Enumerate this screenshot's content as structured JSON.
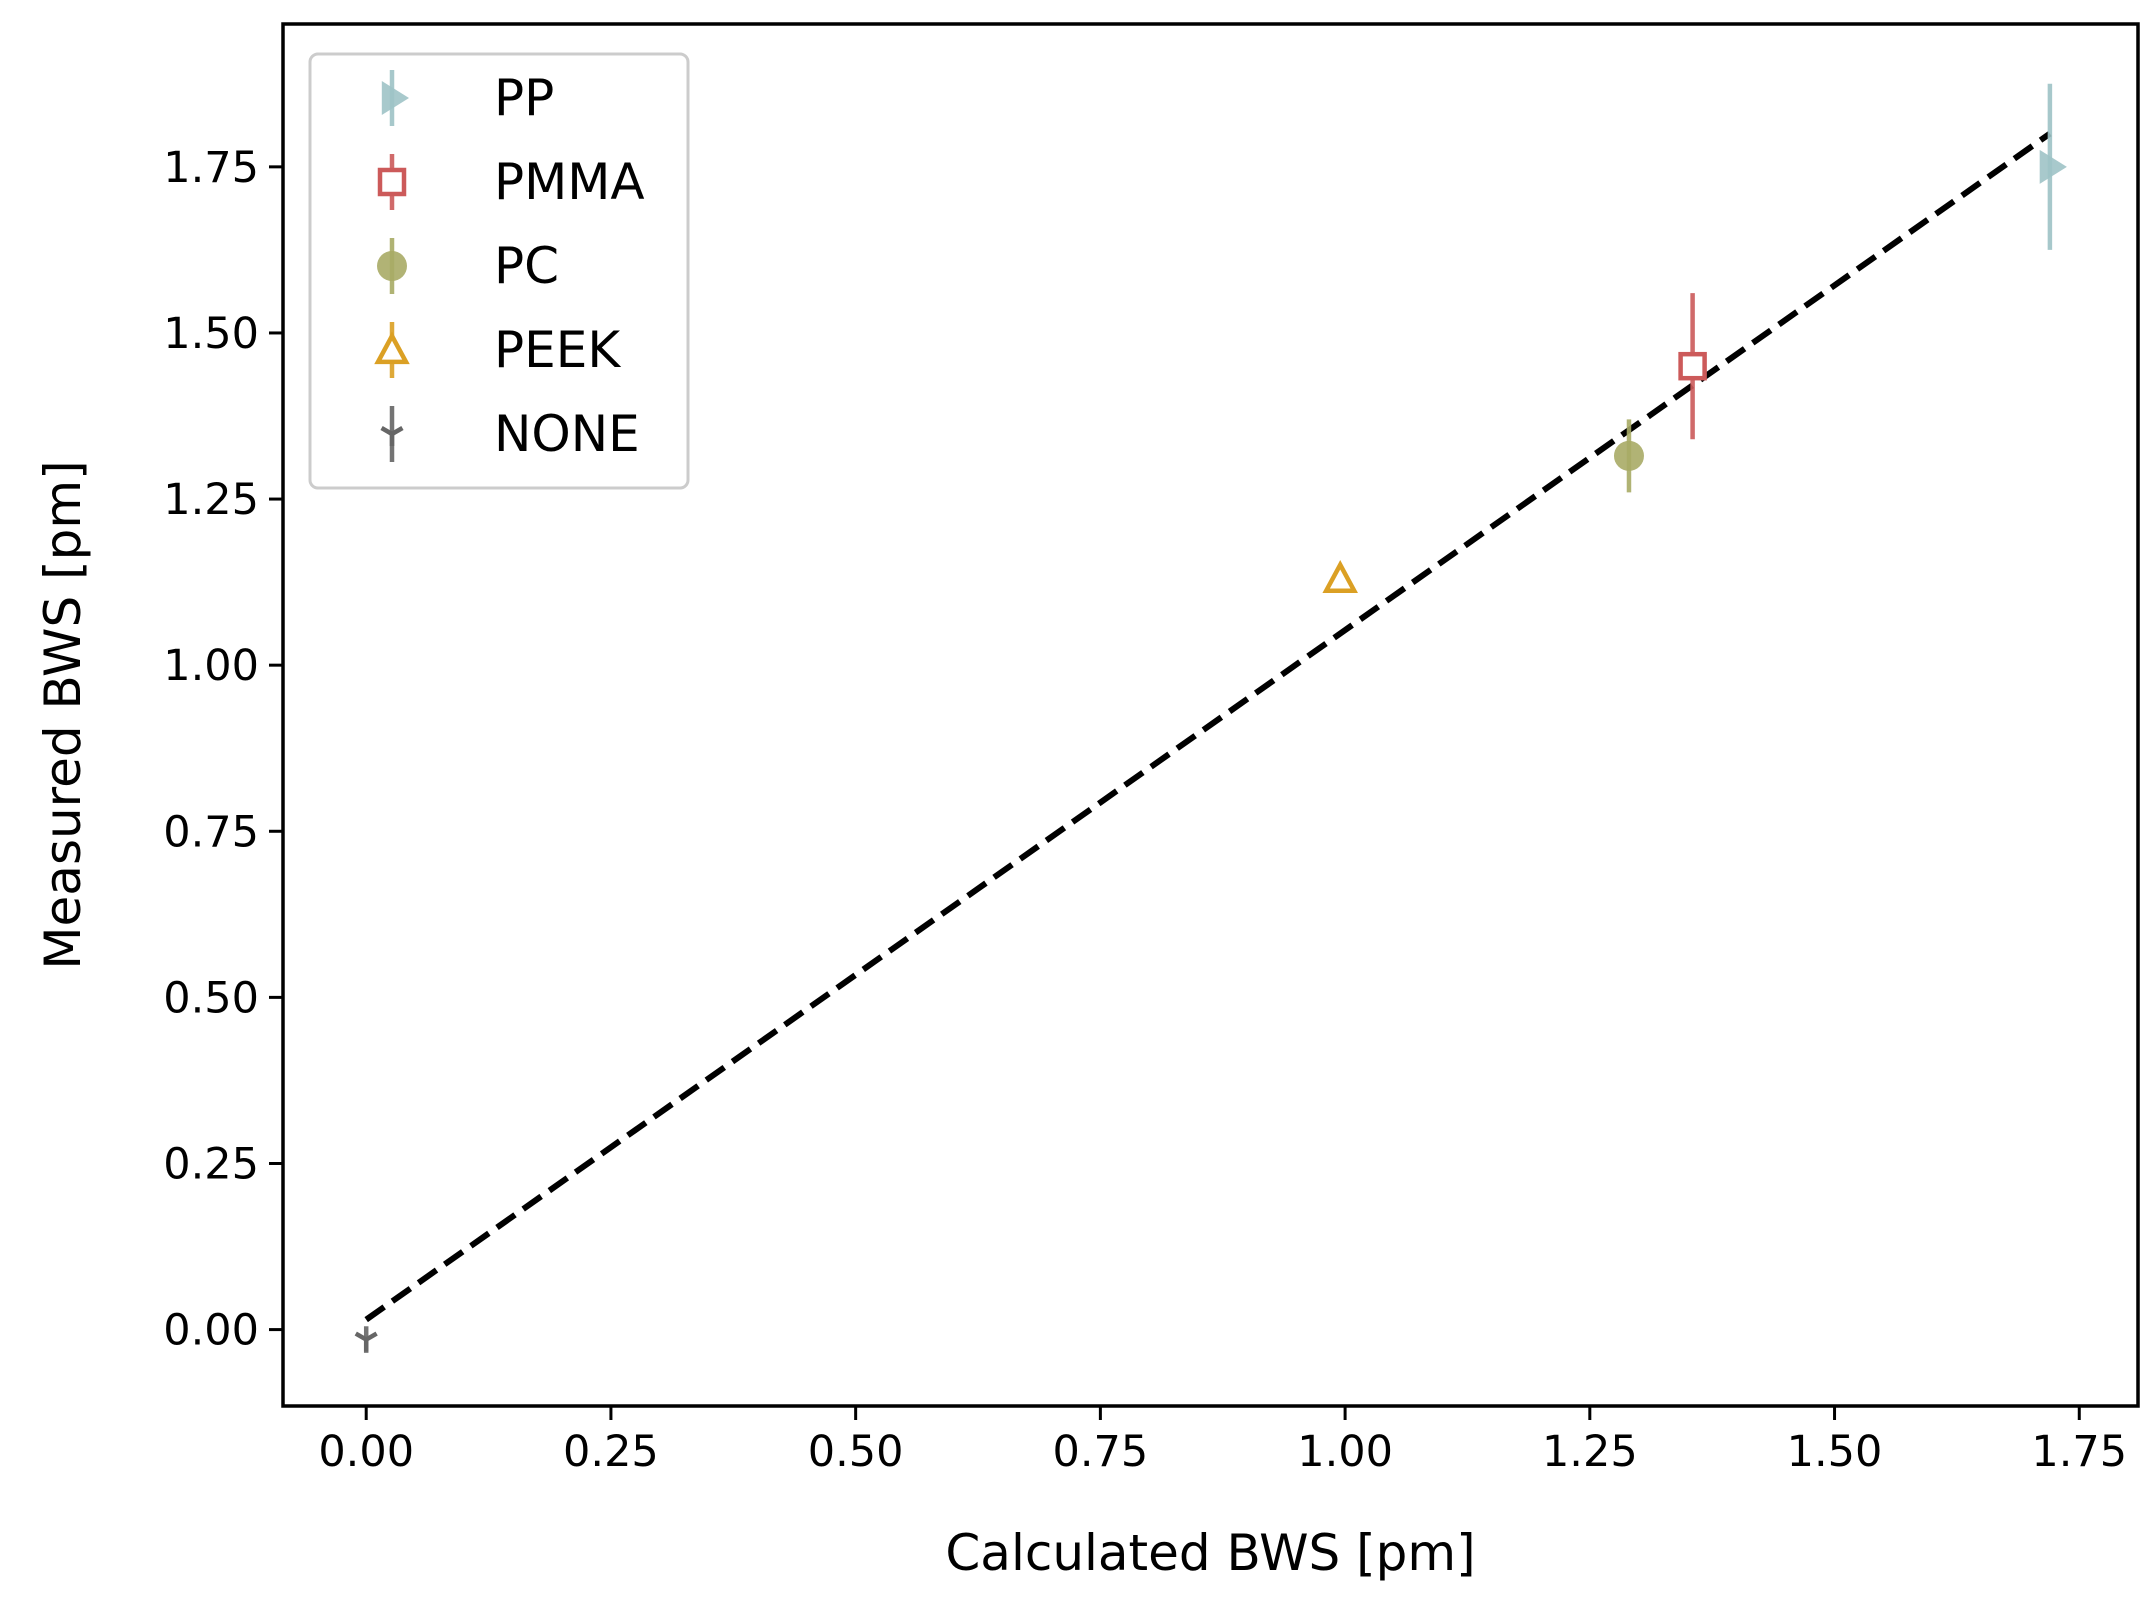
{
  "chart_data": {
    "type": "scatter",
    "title": "",
    "xlabel": "Calculated BWS [pm]",
    "ylabel": "Measured BWS [pm]",
    "xlim": [
      -0.085,
      1.81
    ],
    "ylim": [
      -0.115,
      1.965
    ],
    "x_ticks": [
      "0.00",
      "0.25",
      "0.50",
      "0.75",
      "1.00",
      "1.25",
      "1.50",
      "1.75"
    ],
    "y_ticks": [
      "0.00",
      "0.25",
      "0.50",
      "0.75",
      "1.00",
      "1.25",
      "1.50",
      "1.75"
    ],
    "grid": false,
    "legend_position": "top-left",
    "series": [
      {
        "name": "PP",
        "marker": "triangle-right",
        "color": "#9ec3c6",
        "x": 1.72,
        "y": 1.75,
        "yerr": 0.125
      },
      {
        "name": "PMMA",
        "marker": "square-open",
        "color": "#cc5a5a",
        "x": 1.355,
        "y": 1.45,
        "yerr": 0.11
      },
      {
        "name": "PC",
        "marker": "circle",
        "color": "#a8ab66",
        "x": 1.29,
        "y": 1.315,
        "yerr": 0.055
      },
      {
        "name": "PEEK",
        "marker": "triangle-open",
        "color": "#dba024",
        "x": 0.995,
        "y": 1.13,
        "yerr": 0.02
      },
      {
        "name": "NONE",
        "marker": "tri-down",
        "color": "#666666",
        "x": 0.0,
        "y": -0.015,
        "yerr": 0.02
      }
    ],
    "fit_line": {
      "style": "dashed",
      "color": "#000000",
      "x": [
        0.0,
        1.72
      ],
      "y": [
        0.015,
        1.8
      ]
    }
  }
}
